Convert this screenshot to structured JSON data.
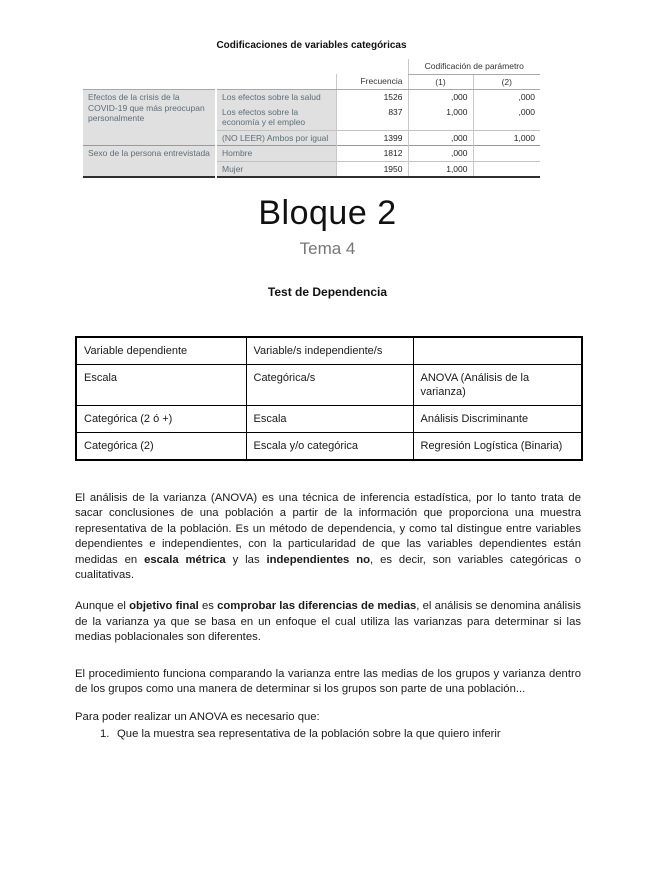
{
  "colors": {
    "spss_label_bg": "#e0e0e0",
    "spss_label_text": "#5d6e79",
    "muted_heading_text": "#777777",
    "table_border": "#000000",
    "spss_bottom_border": "#2e2e2e"
  },
  "spss_table": {
    "title": "Codificaciones de variables categóricas",
    "col_headers": {
      "frequency": "Frecuencia",
      "param_group": "Codificación de parámetro",
      "p1": "(1)",
      "p2": "(2)"
    },
    "groups": [
      {
        "label": "Efectos de la crisis de la COVID-19 que más preocupan personalmente",
        "rows": [
          {
            "category": "Los efectos sobre la salud",
            "freq": "1526",
            "p1": ",000",
            "p2": ",000"
          },
          {
            "category": "Los efectos sobre la economía y el empleo",
            "freq": "837",
            "p1": "1,000",
            "p2": ",000"
          },
          {
            "category": "(NO LEER) Ambos por igual",
            "freq": "1399",
            "p1": ",000",
            "p2": "1,000"
          }
        ]
      },
      {
        "label": "Sexo de la persona entrevistada",
        "rows": [
          {
            "category": "Hombre",
            "freq": "1812",
            "p1": ",000",
            "p2": ""
          },
          {
            "category": "Mujer",
            "freq": "1950",
            "p1": "1,000",
            "p2": ""
          }
        ]
      }
    ]
  },
  "headings": {
    "block_title": "Bloque 2",
    "topic_subtitle": "Tema 4",
    "section_title": "Test de Dependencia"
  },
  "dependence_table": {
    "headers": [
      "Variable dependiente",
      "Variable/s independiente/s",
      ""
    ],
    "rows": [
      [
        "Escala",
        "Categórica/s",
        "ANOVA (Análisis de la varianza)"
      ],
      [
        "Categórica (2 ó +)",
        "Escala",
        "Análisis Discriminante"
      ],
      [
        "Categórica (2)",
        "Escala y/o categórica",
        "Regresión Logística (Binaria)"
      ]
    ]
  },
  "paragraphs": {
    "p1": [
      {
        "t": "El análisis de la varianza (ANOVA) es una técnica de inferencia estadística, por lo tanto trata de sacar conclusiones de una población a partir de la información que proporciona una muestra representativa de la población. Es un método de dependencia, y como tal distingue entre variables dependientes e independientes, con la particularidad de que las variables dependientes están medidas en "
      },
      {
        "t": "escala métrica",
        "b": true
      },
      {
        "t": " y las "
      },
      {
        "t": "independientes no",
        "b": true
      },
      {
        "t": ", es decir, son variables categóricas o cualitativas."
      }
    ],
    "p2": [
      {
        "t": "Aunque el "
      },
      {
        "t": "objetivo final",
        "b": true
      },
      {
        "t": " es "
      },
      {
        "t": "comprobar las diferencias de medias",
        "b": true
      },
      {
        "t": ", el análisis se denomina análisis de la varianza ya que se basa en un enfoque el cual utiliza las varianzas para determinar si las medias poblacionales son diferentes."
      }
    ],
    "p3": [
      {
        "t": "El procedimiento funciona comparando la varianza entre las medias de los grupos y varianza dentro de los grupos como una manera de determinar si los grupos son parte de una población..."
      }
    ],
    "p4_intro": "Para poder realizar un ANOVA es necesario que:",
    "list_items": [
      {
        "marker": "1.",
        "text": "Que la muestra sea representativa de la población sobre la que quiero inferir"
      }
    ]
  }
}
